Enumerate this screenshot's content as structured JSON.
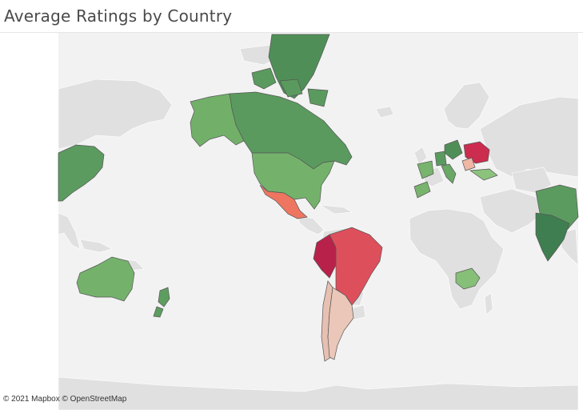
{
  "title": "Average Ratings by Country",
  "attribution": "© 2021 Mapbox © OpenStreetMap",
  "map": {
    "type": "choropleth",
    "measure": "Average Rating",
    "projection": "Pacific-centered Mercator (Americas in center)",
    "color_scale": {
      "low": "#c7204b",
      "mid": "#f0c7b6",
      "high": "#3a7d4e",
      "no_data": "#e0e0e0",
      "background": "#f2f2f2"
    },
    "countries": [
      {
        "name": "Canada",
        "rating_level": "high",
        "color": "#5a9a5e"
      },
      {
        "name": "Greenland",
        "rating_level": "high",
        "color": "#4f8f57"
      },
      {
        "name": "Alaska (United States)",
        "rating_level": "medium-high",
        "color": "#72b06a"
      },
      {
        "name": "United States",
        "rating_level": "medium-high",
        "color": "#74b26c"
      },
      {
        "name": "Mexico",
        "rating_level": "low-medium",
        "color": "#ee7660"
      },
      {
        "name": "Peru",
        "rating_level": "lowest",
        "color": "#b8224a"
      },
      {
        "name": "Brazil",
        "rating_level": "low",
        "color": "#de4f5c"
      },
      {
        "name": "Chile",
        "rating_level": "medium-low",
        "color": "#e7c0b1"
      },
      {
        "name": "Argentina",
        "rating_level": "medium-low",
        "color": "#eac7b9"
      },
      {
        "name": "China",
        "rating_level": "high",
        "color": "#5c9b60"
      },
      {
        "name": "India",
        "rating_level": "highest",
        "color": "#3f7e50"
      },
      {
        "name": "Australia",
        "rating_level": "medium-high",
        "color": "#74b26c"
      },
      {
        "name": "New Zealand",
        "rating_level": "high",
        "color": "#5e9d60"
      },
      {
        "name": "South Africa",
        "rating_level": "medium-high",
        "color": "#86bf78"
      },
      {
        "name": "Ukraine",
        "rating_level": "lowest",
        "color": "#cc2c4e"
      },
      {
        "name": "Poland",
        "rating_level": "high",
        "color": "#4f8f57"
      },
      {
        "name": "Germany",
        "rating_level": "high",
        "color": "#5a9a5e"
      },
      {
        "name": "Spain",
        "rating_level": "medium-high",
        "color": "#78b46d"
      },
      {
        "name": "Morocco",
        "rating_level": "medium-high",
        "color": "#78b46d"
      },
      {
        "name": "Turkey",
        "rating_level": "medium-high",
        "color": "#8cc37c"
      },
      {
        "name": "Romania",
        "rating_level": "medium-low",
        "color": "#efb7a3"
      },
      {
        "name": "Italy",
        "rating_level": "medium-high",
        "color": "#6aa866"
      }
    ]
  }
}
